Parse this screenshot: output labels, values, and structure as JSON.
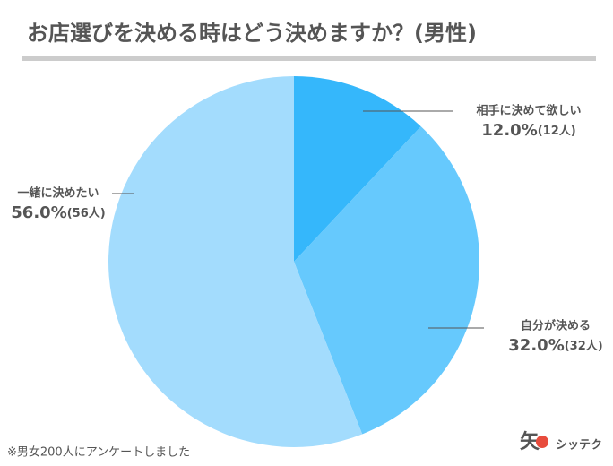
{
  "chart_data": {
    "type": "pie",
    "title": "お店選びを決める時はどう決めますか？(男性)",
    "categories": [
      "相手に決めて欲しい",
      "自分が決める",
      "一緒に決めたい"
    ],
    "values": [
      12,
      32,
      56
    ],
    "value_labels": [
      "12.0%",
      "32.0%",
      "56.0%"
    ],
    "counts": [
      12,
      32,
      56
    ],
    "count_labels": [
      "(12人)",
      "(32人)",
      "(56人)"
    ],
    "colors": [
      "#35b7fb",
      "#66c9fd",
      "#a3dcfd"
    ],
    "note": "※男女200人にアンケートしました"
  },
  "brand": {
    "glyph": "矢",
    "name": "シッテク"
  }
}
